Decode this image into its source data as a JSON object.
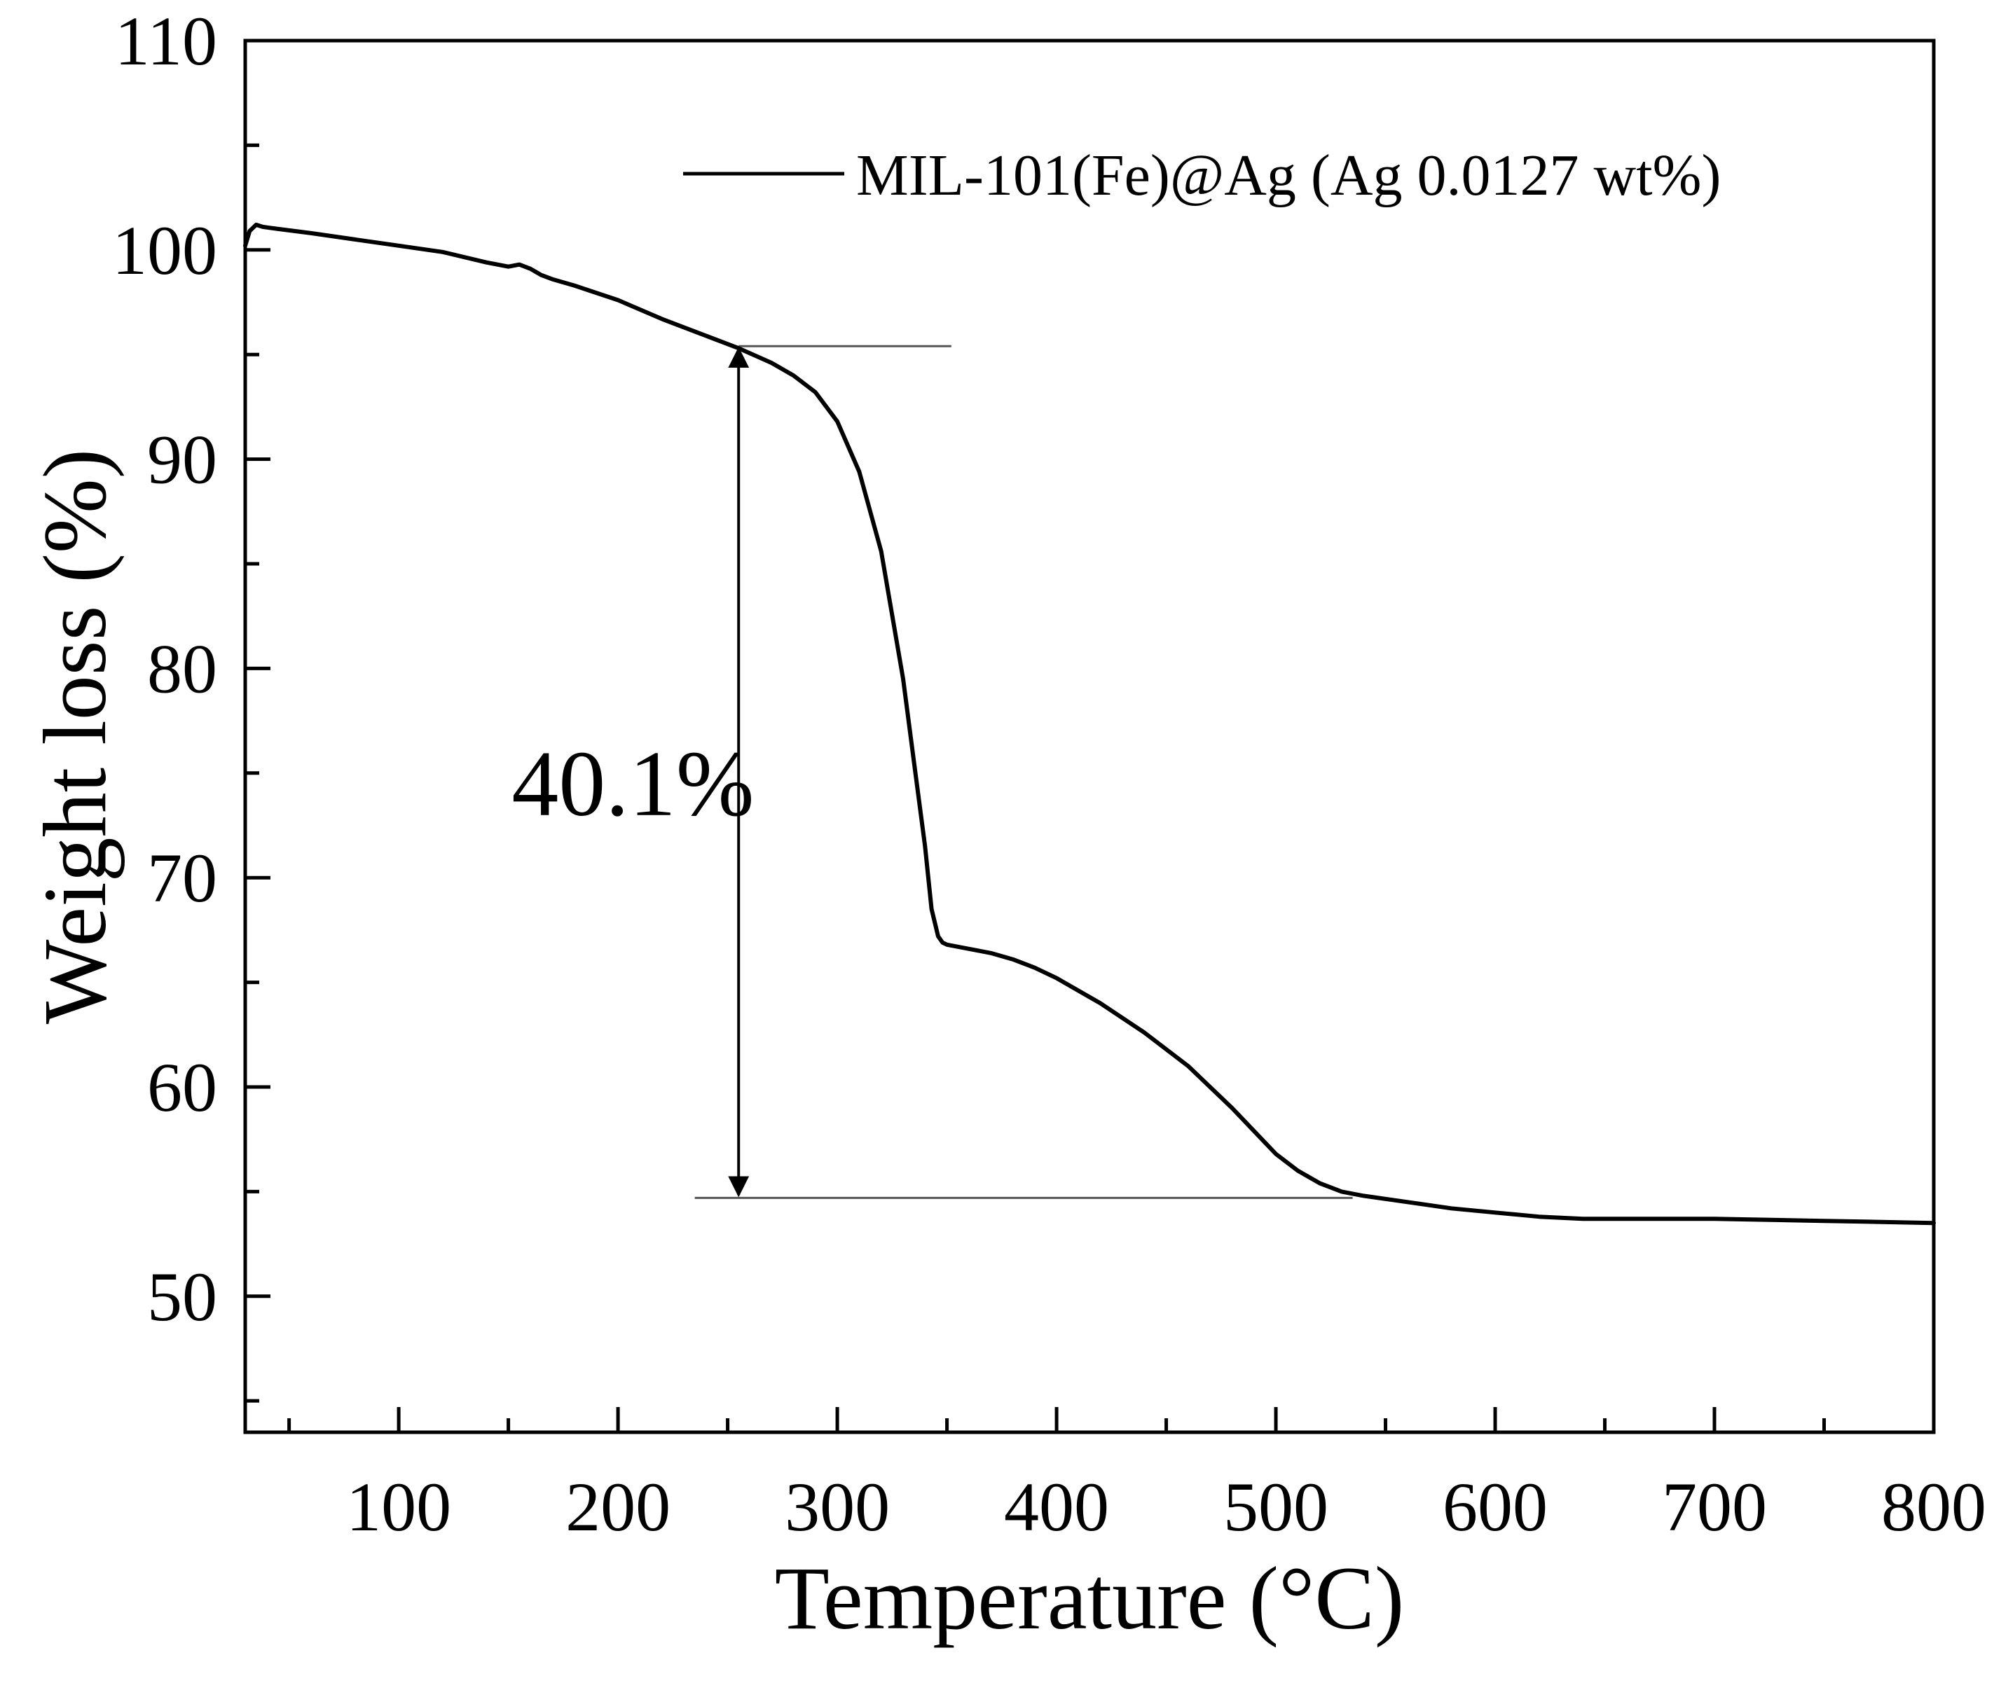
{
  "chart_data": {
    "type": "line",
    "title": "",
    "xlabel": "Temperature (°C)",
    "ylabel": "Weight loss (%)",
    "xlim": [
      30,
      800
    ],
    "ylim": [
      43.5,
      110
    ],
    "x_ticks": [
      100,
      200,
      300,
      400,
      500,
      600,
      700,
      800
    ],
    "y_ticks": [
      50,
      60,
      70,
      80,
      90,
      100,
      110
    ],
    "grid": false,
    "legend": {
      "position": "top-right"
    },
    "series": [
      {
        "name": "MIL-101(Fe)@Ag (Ag 0.0127 wt%)",
        "color": "#000000",
        "x": [
          30,
          32,
          35,
          38,
          45,
          60,
          80,
          100,
          120,
          140,
          150,
          155,
          160,
          165,
          170,
          180,
          200,
          220,
          240,
          255,
          270,
          280,
          290,
          300,
          310,
          320,
          330,
          335,
          340,
          343,
          346,
          348,
          350,
          360,
          370,
          380,
          390,
          400,
          420,
          440,
          460,
          480,
          500,
          510,
          520,
          530,
          540,
          560,
          580,
          600,
          620,
          640,
          660,
          700,
          750,
          800
        ],
        "y": [
          100.2,
          100.9,
          101.2,
          101.1,
          101.0,
          100.8,
          100.5,
          100.2,
          99.9,
          99.4,
          99.2,
          99.3,
          99.1,
          98.8,
          98.6,
          98.3,
          97.6,
          96.7,
          95.9,
          95.3,
          94.6,
          94.0,
          93.2,
          91.8,
          89.4,
          85.6,
          79.5,
          75.5,
          71.5,
          68.5,
          67.2,
          66.9,
          66.8,
          66.6,
          66.4,
          66.1,
          65.7,
          65.2,
          64.0,
          62.6,
          61.0,
          59.0,
          56.8,
          56.0,
          55.4,
          55.0,
          54.8,
          54.5,
          54.2,
          54.0,
          53.8,
          53.7,
          53.7,
          53.7,
          53.6,
          53.5
        ]
      }
    ],
    "annotations": [
      {
        "type": "hline",
        "x": [
          255,
          352
        ],
        "y": 95.4
      },
      {
        "type": "hline",
        "x": [
          235,
          535
        ],
        "y": 54.7
      },
      {
        "type": "double-arrow",
        "x": 255,
        "y": [
          95.4,
          54.7
        ]
      },
      {
        "type": "text",
        "text": "40.1%",
        "x": 210,
        "y": 74.5
      }
    ]
  }
}
